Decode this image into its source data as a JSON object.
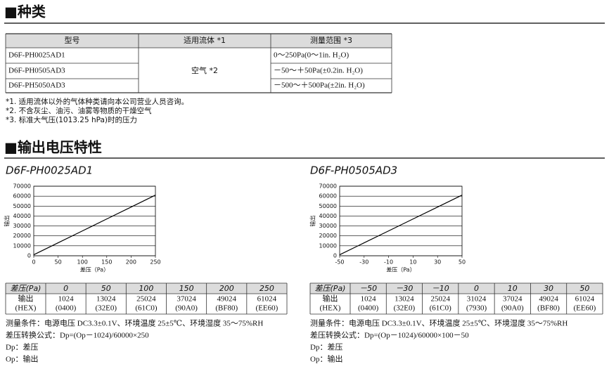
{
  "section1_title": "■种类",
  "table": {
    "header": [
      "型号",
      "适用流体 *1",
      "测量范围 *3"
    ],
    "models": [
      "D6F-PH0025AD1",
      "D6F-PH0505AD3",
      "D6F-PH5050AD3"
    ],
    "fluid": "空气 *2",
    "ranges": [
      "0～250Pa(0～1in. H₂O)",
      "－50～＋50Pa(±0.2in. H₂O)",
      "－500～＋500Pa(±2in. H₂O)"
    ]
  },
  "notes": [
    "*1. 适用流体以外的气体种类请向本公司营业人员咨询。",
    "*2. 不含灰尘、油污、油雾等物质的干燥空气",
    "*3. 标准大气压(1013.25 hPa)时的压力"
  ],
  "section2_title": "■输出电压特性",
  "chart_data": [
    {
      "type": "line",
      "title": "D6F-PH0025AD1",
      "x_label": "差压（Pa）",
      "y_label": "输出",
      "x": [
        0,
        50,
        100,
        150,
        200,
        250
      ],
      "values": [
        1024,
        13024,
        25024,
        37024,
        49024,
        61024
      ],
      "color": "#000000",
      "xlim": [
        0,
        250
      ],
      "ylim": [
        0,
        70000
      ],
      "xticks": [
        0,
        50,
        100,
        150,
        200,
        250
      ],
      "yticks": [
        0,
        10000,
        20000,
        30000,
        40000,
        50000,
        60000,
        70000
      ],
      "grid": true
    },
    {
      "type": "line",
      "title": "D6F-PH0505AD3",
      "x_label": "差压（Pa）",
      "y_label": "输出",
      "x": [
        -50,
        -30,
        -10,
        0,
        10,
        30,
        50
      ],
      "values": [
        1024,
        13024,
        25024,
        31024,
        37024,
        49024,
        61024
      ],
      "color": "#000000",
      "xlim": [
        -50,
        50
      ],
      "ylim": [
        0,
        70000
      ],
      "xticks": [
        -50,
        -30,
        -10,
        10,
        30,
        50
      ],
      "yticks": [
        0,
        10000,
        20000,
        30000,
        40000,
        50000,
        60000,
        70000
      ],
      "grid": true
    }
  ],
  "output_tables": [
    {
      "header_label": "差压(Pa)",
      "columns": [
        "0",
        "50",
        "100",
        "150",
        "200",
        "250"
      ],
      "row_label": [
        "输出",
        "(HEX)"
      ],
      "cells": [
        [
          "1024",
          "(0400)"
        ],
        [
          "13024",
          "(32E0)"
        ],
        [
          "25024",
          "(61C0)"
        ],
        [
          "37024",
          "(90A0)"
        ],
        [
          "49024",
          "(BF80)"
        ],
        [
          "61024",
          "(EE60)"
        ]
      ]
    },
    {
      "header_label": "差压(Pa)",
      "columns": [
        "－50",
        "－30",
        "－10",
        "0",
        "10",
        "30",
        "50"
      ],
      "row_label": [
        "输出",
        "(HEX)"
      ],
      "cells": [
        [
          "1024",
          "(0400)"
        ],
        [
          "13024",
          "(32E0)"
        ],
        [
          "25024",
          "(61C0)"
        ],
        [
          "31024",
          "(7930)"
        ],
        [
          "37024",
          "(90A0)"
        ],
        [
          "49024",
          "(BF80)"
        ],
        [
          "61024",
          "(EE60)"
        ]
      ]
    }
  ],
  "conditions": [
    [
      "测量条件：电源电压 DC3.3±0.1V、环境温度 25±5℃、环境湿度 35～75%RH",
      "差压转换公式：Dp=(Op－1024)/60000×250",
      "Dp：差压",
      "Op：输出"
    ],
    [
      "测量条件：电源电压 DC3.3±0.1V、环境温度 25±5℃、环境湿度 35～75%RH",
      "差压转换公式：Dp=(Op－1024)/60000×100－50",
      "Dp：差压",
      "Op：输出"
    ]
  ]
}
